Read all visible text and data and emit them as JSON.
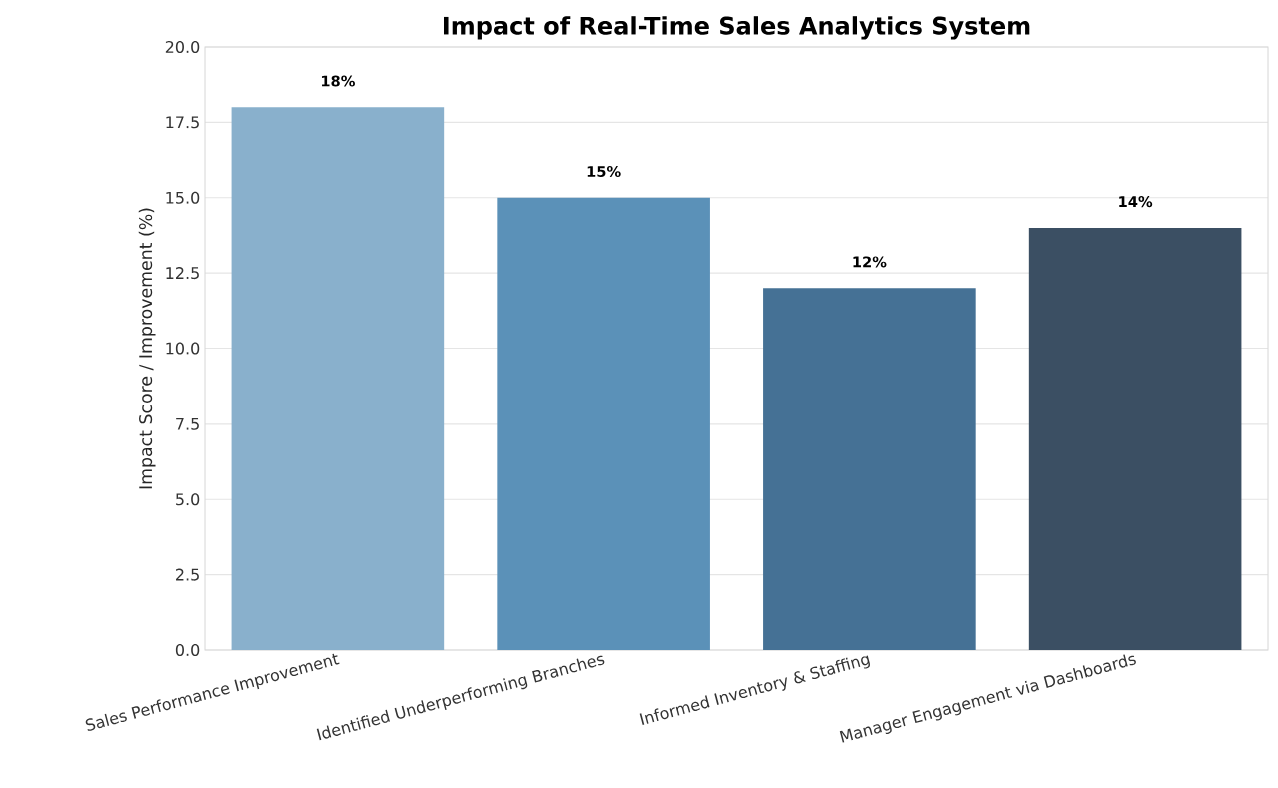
{
  "chart_data": {
    "type": "bar",
    "title": "Impact of Real-Time Sales Analytics System",
    "ylabel": "Impact Score / Improvement (%)",
    "categories": [
      "Sales Performance Improvement",
      "Identified Underperforming Branches",
      "Informed Inventory & Staffing",
      "Manager Engagement via Dashboards"
    ],
    "values": [
      18,
      15,
      12,
      14
    ],
    "value_labels": [
      "18%",
      "15%",
      "12%",
      "14%"
    ],
    "colors": [
      "#89b0cc",
      "#5b91b8",
      "#457195",
      "#3b4f63"
    ],
    "ylim": [
      0,
      20
    ],
    "yticks": [
      {
        "value": 0,
        "label": "0.0"
      },
      {
        "value": 2.5,
        "label": "2.5"
      },
      {
        "value": 5,
        "label": "5.0"
      },
      {
        "value": 7.5,
        "label": "7.5"
      },
      {
        "value": 10,
        "label": "10.0"
      },
      {
        "value": 12.5,
        "label": "12.5"
      },
      {
        "value": 15,
        "label": "15.0"
      },
      {
        "value": 17.5,
        "label": "17.5"
      },
      {
        "value": 20,
        "label": "20.0"
      }
    ],
    "grid": "y"
  }
}
